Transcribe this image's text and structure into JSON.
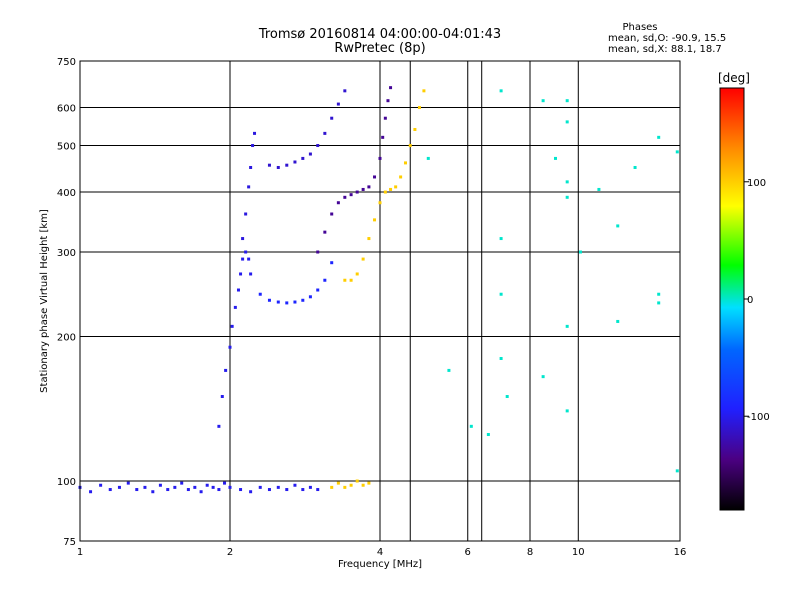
{
  "chart_data": {
    "type": "scatter",
    "title": "Tromsø 20160814 04:00:00-04:01:43",
    "subtitle": "RwPretec (8p)",
    "xlabel": "Frequency [MHz]",
    "ylabel": "Stationary phase Virtual Height [km]",
    "x_scale": "log",
    "y_scale": "log",
    "xlim": [
      1,
      16
    ],
    "ylim": [
      75,
      750
    ],
    "x_ticks": [
      1,
      2,
      4,
      6,
      8,
      10,
      16
    ],
    "x_tick_labels": [
      "1",
      "2",
      "4",
      "6",
      "8",
      "10",
      "16"
    ],
    "y_ticks": [
      75,
      100,
      200,
      300,
      400,
      500,
      600,
      750
    ],
    "y_tick_labels": [
      "75",
      "100",
      "200",
      "300",
      "400",
      "500",
      "600",
      "750"
    ],
    "grid": true,
    "x_minor_gridlines": [
      4.6,
      6.4
    ],
    "phases_header": "Phases",
    "phases_stats": [
      "mean, sd,O: -90.9, 15.5",
      "mean, sd,X:  88.1, 18.7"
    ],
    "colorbar": {
      "label": "[deg]",
      "range": [
        -180,
        180
      ],
      "ticks": [
        100,
        0,
        -100
      ],
      "tick_labels": [
        "100",
        "0",
        "-100"
      ],
      "colormap": "rainbow: black(-180) → purple → blue → cyan → green → yellow → orange → red(+180)"
    },
    "color_encoding": "phase [deg]",
    "series": [
      {
        "trace": "lower E-region echoes, ~95 km, 1.0–3.3 MHz",
        "phase": -100,
        "points": [
          [
            1.0,
            97
          ],
          [
            1.05,
            95
          ],
          [
            1.1,
            98
          ],
          [
            1.15,
            96
          ],
          [
            1.2,
            97
          ],
          [
            1.25,
            99
          ],
          [
            1.3,
            96
          ],
          [
            1.35,
            97
          ],
          [
            1.4,
            95
          ],
          [
            1.45,
            98
          ],
          [
            1.5,
            96
          ],
          [
            1.55,
            97
          ],
          [
            1.6,
            99
          ],
          [
            1.65,
            96
          ],
          [
            1.7,
            97
          ],
          [
            1.75,
            95
          ],
          [
            1.8,
            98
          ],
          [
            1.85,
            97
          ],
          [
            1.9,
            96
          ],
          [
            1.95,
            99
          ],
          [
            2.0,
            97
          ],
          [
            2.1,
            96
          ],
          [
            2.2,
            95
          ],
          [
            2.3,
            97
          ],
          [
            2.4,
            96
          ],
          [
            2.5,
            97
          ],
          [
            2.6,
            96
          ],
          [
            2.7,
            98
          ],
          [
            2.8,
            96
          ],
          [
            2.9,
            97
          ],
          [
            3.0,
            96
          ]
        ]
      },
      {
        "trace": "E-region echoes (yellow), ~98 km, 3.2–3.8 MHz",
        "phase": 100,
        "points": [
          [
            3.2,
            97
          ],
          [
            3.3,
            99
          ],
          [
            3.4,
            97
          ],
          [
            3.5,
            98
          ],
          [
            3.6,
            100
          ],
          [
            3.7,
            98
          ],
          [
            3.8,
            99
          ]
        ]
      },
      {
        "trace": "F1 rise, 1.9–2.2 MHz",
        "phase": -100,
        "points": [
          [
            1.9,
            130
          ],
          [
            1.93,
            150
          ],
          [
            1.96,
            170
          ],
          [
            2.0,
            190
          ],
          [
            2.02,
            210
          ],
          [
            2.05,
            230
          ],
          [
            2.08,
            250
          ],
          [
            2.1,
            270
          ],
          [
            2.12,
            290
          ],
          [
            2.15,
            300
          ],
          [
            2.18,
            290
          ],
          [
            2.2,
            270
          ]
        ]
      },
      {
        "trace": "F1 cusp upper branch, 2.1–2.3 MHz",
        "phase": -105,
        "points": [
          [
            2.12,
            320
          ],
          [
            2.15,
            360
          ],
          [
            2.18,
            410
          ],
          [
            2.2,
            450
          ],
          [
            2.22,
            500
          ],
          [
            2.24,
            530
          ]
        ]
      },
      {
        "trace": "F-region trace, 2.3–3.2 MHz",
        "phase": -90,
        "points": [
          [
            2.3,
            245
          ],
          [
            2.4,
            238
          ],
          [
            2.5,
            236
          ],
          [
            2.6,
            235
          ],
          [
            2.7,
            236
          ],
          [
            2.8,
            238
          ],
          [
            2.9,
            242
          ],
          [
            3.0,
            250
          ],
          [
            3.1,
            262
          ],
          [
            3.2,
            285
          ]
        ]
      },
      {
        "trace": "F2 O-mode rising trace, 3.0–4.2 MHz",
        "phase": -130,
        "points": [
          [
            3.0,
            300
          ],
          [
            3.1,
            330
          ],
          [
            3.2,
            360
          ],
          [
            3.3,
            380
          ],
          [
            3.4,
            390
          ],
          [
            3.5,
            395
          ],
          [
            3.6,
            400
          ],
          [
            3.7,
            405
          ],
          [
            3.8,
            410
          ],
          [
            3.9,
            430
          ],
          [
            4.0,
            470
          ],
          [
            4.05,
            520
          ],
          [
            4.1,
            570
          ],
          [
            4.15,
            620
          ],
          [
            4.2,
            660
          ]
        ]
      },
      {
        "trace": "upper trace, 2.4–3.5 MHz",
        "phase": -110,
        "points": [
          [
            2.4,
            455
          ],
          [
            2.5,
            450
          ],
          [
            2.6,
            455
          ],
          [
            2.7,
            462
          ],
          [
            2.8,
            470
          ],
          [
            2.9,
            480
          ],
          [
            3.0,
            500
          ],
          [
            3.1,
            530
          ],
          [
            3.2,
            570
          ],
          [
            3.3,
            610
          ],
          [
            3.4,
            650
          ]
        ]
      },
      {
        "trace": "F2 X-mode trace (yellow), 3.4–4.9 MHz",
        "phase": 100,
        "points": [
          [
            3.4,
            262
          ],
          [
            3.5,
            262
          ],
          [
            3.6,
            270
          ],
          [
            3.7,
            290
          ],
          [
            3.8,
            320
          ],
          [
            3.9,
            350
          ],
          [
            4.0,
            380
          ],
          [
            4.1,
            400
          ],
          [
            4.2,
            405
          ],
          [
            4.3,
            410
          ],
          [
            4.4,
            430
          ],
          [
            4.5,
            460
          ],
          [
            4.6,
            500
          ],
          [
            4.7,
            540
          ],
          [
            4.8,
            600
          ],
          [
            4.9,
            650
          ]
        ]
      },
      {
        "trace": "scattered points",
        "phase": 0,
        "points": [
          [
            5.0,
            470
          ],
          [
            5.5,
            170
          ],
          [
            6.1,
            130
          ],
          [
            6.6,
            125
          ],
          [
            7.0,
            650
          ],
          [
            7.0,
            320
          ],
          [
            7.0,
            245
          ],
          [
            7.0,
            180
          ],
          [
            7.2,
            150
          ],
          [
            8.5,
            620
          ],
          [
            8.5,
            165
          ],
          [
            9.0,
            470
          ],
          [
            9.5,
            620
          ],
          [
            9.5,
            560
          ],
          [
            9.5,
            420
          ],
          [
            9.5,
            390
          ],
          [
            9.5,
            210
          ],
          [
            9.5,
            140
          ],
          [
            10.1,
            300
          ],
          [
            11.0,
            405
          ],
          [
            12.0,
            340
          ],
          [
            12.0,
            215
          ],
          [
            13.0,
            450
          ],
          [
            14.5,
            520
          ],
          [
            14.5,
            245
          ],
          [
            14.5,
            235
          ],
          [
            15.8,
            485
          ],
          [
            15.8,
            105
          ]
        ]
      }
    ]
  }
}
